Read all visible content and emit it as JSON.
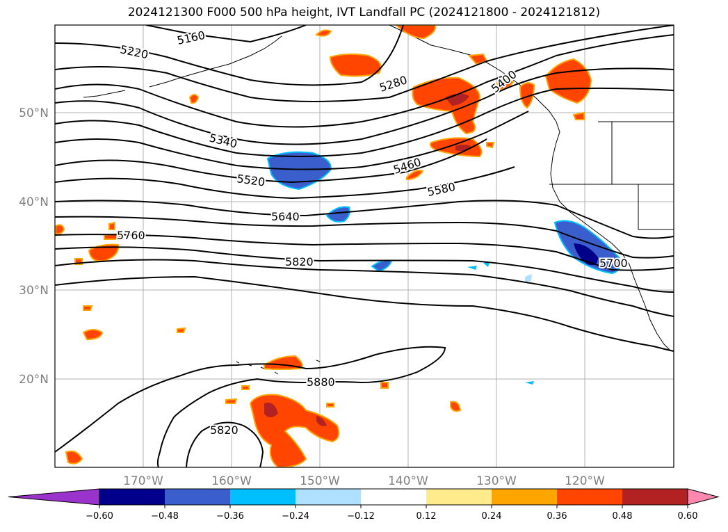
{
  "title": "2024121300 F000 500 hPa height, IVT Landfall PC (2024121800 - 2024121812)",
  "map": {
    "lat_ticks": [
      "50°N",
      "40°N",
      "30°N",
      "20°N"
    ],
    "lon_ticks": [
      "170°W",
      "160°W",
      "150°W",
      "140°W",
      "130°W",
      "120°W"
    ],
    "contour_labels": [
      "5160",
      "5220",
      "5280",
      "5340",
      "5400",
      "5460",
      "5520",
      "5580",
      "5640",
      "5760",
      "5700",
      "5820",
      "5880",
      "5820"
    ]
  },
  "colorbar": {
    "ticks": [
      "−0.60",
      "−0.48",
      "−0.36",
      "−0.24",
      "−0.12",
      "0.12",
      "0.24",
      "0.36",
      "0.48",
      "0.60"
    ],
    "colors": [
      "#9933cc",
      "#00008b",
      "#3a5fcd",
      "#00bfff",
      "#b0e0ff",
      "#ffffff",
      "#ffeb8c",
      "#ffa500",
      "#ff4500",
      "#b22222",
      "#ff88b0"
    ]
  }
}
